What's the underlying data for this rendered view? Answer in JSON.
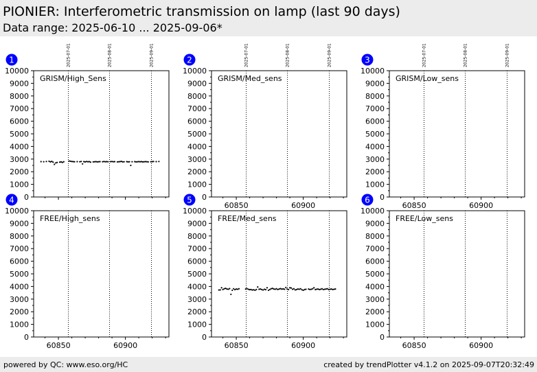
{
  "header": {
    "title": "PIONIER: Interferometric transmission on lamp (last 90 days)",
    "subtitle": "Data range: 2025-06-10 ... 2025-09-06*"
  },
  "footer": {
    "left": "powered by QC: www.eso.org/HC",
    "right": "created by trendPlotter v4.1.2 on 2025-09-07T20:32:49"
  },
  "colors": {
    "badge": "#0000ff",
    "points": "#000000",
    "header_bg": "#ececec"
  },
  "chart_data": [
    {
      "id": "1",
      "type": "scatter",
      "label": "GRISM/High_Sens",
      "xlim": [
        60831.5,
        60932.5
      ],
      "ylim": [
        0,
        10000
      ],
      "xticks": [
        60850,
        60900
      ],
      "show_xtick_labels": false,
      "yticks": [
        0,
        1000,
        2000,
        3000,
        4000,
        5000,
        6000,
        7000,
        8000,
        9000,
        10000
      ],
      "date_markers": [
        {
          "x": 60857,
          "label": "2025-07-01"
        },
        {
          "x": 60888,
          "label": "2025-08-01"
        },
        {
          "x": 60919,
          "label": "2025-09-01"
        }
      ],
      "points": [
        [
          60837,
          2800
        ],
        [
          60839,
          2790
        ],
        [
          60841,
          2810
        ],
        [
          60843,
          2830
        ],
        [
          60844,
          2780
        ],
        [
          60845,
          2820
        ],
        [
          60846,
          2760
        ],
        [
          60847,
          2580
        ],
        [
          60848,
          2700
        ],
        [
          60849,
          2730
        ],
        [
          60851,
          2760
        ],
        [
          60852,
          2780
        ],
        [
          60853,
          2740
        ],
        [
          60854,
          2790
        ],
        [
          60858,
          2850
        ],
        [
          60859,
          2830
        ],
        [
          60860,
          2810
        ],
        [
          60861,
          2800
        ],
        [
          60862,
          2790
        ],
        [
          60864,
          2800
        ],
        [
          60866,
          2790
        ],
        [
          60867,
          2810
        ],
        [
          60868,
          2620
        ],
        [
          60869,
          2800
        ],
        [
          60870,
          2780
        ],
        [
          60871,
          2810
        ],
        [
          60872,
          2790
        ],
        [
          60873,
          2800
        ],
        [
          60874,
          2760
        ],
        [
          60876,
          2780
        ],
        [
          60877,
          2790
        ],
        [
          60878,
          2800
        ],
        [
          60879,
          2780
        ],
        [
          60880,
          2790
        ],
        [
          60881,
          2800
        ],
        [
          60883,
          2790
        ],
        [
          60884,
          2810
        ],
        [
          60885,
          2790
        ],
        [
          60886,
          2800
        ],
        [
          60887,
          2790
        ],
        [
          60889,
          2800
        ],
        [
          60890,
          2810
        ],
        [
          60891,
          2790
        ],
        [
          60892,
          2800
        ],
        [
          60894,
          2780
        ],
        [
          60895,
          2790
        ],
        [
          60896,
          2800
        ],
        [
          60897,
          2820
        ],
        [
          60898,
          2780
        ],
        [
          60899,
          2790
        ],
        [
          60901,
          2800
        ],
        [
          60902,
          2780
        ],
        [
          60903,
          2790
        ],
        [
          60904,
          2500
        ],
        [
          60905,
          2790
        ],
        [
          60907,
          2800
        ],
        [
          60908,
          2780
        ],
        [
          60909,
          2790
        ],
        [
          60910,
          2800
        ],
        [
          60911,
          2790
        ],
        [
          60912,
          2800
        ],
        [
          60913,
          2780
        ],
        [
          60914,
          2790
        ],
        [
          60915,
          2800
        ],
        [
          60916,
          2790
        ],
        [
          60917,
          2780
        ],
        [
          60919,
          2790
        ],
        [
          60920,
          2800
        ],
        [
          60921,
          2810
        ],
        [
          60923,
          2800
        ],
        [
          60925,
          2810
        ]
      ]
    },
    {
      "id": "2",
      "type": "scatter",
      "label": "GRISM/Med_sens",
      "xlim": [
        60831.5,
        60932.5
      ],
      "ylim": [
        0,
        10000
      ],
      "xticks": [
        60850,
        60900
      ],
      "show_xtick_labels": true,
      "yticks": [
        0,
        1000,
        2000,
        3000,
        4000,
        5000,
        6000,
        7000,
        8000,
        9000,
        10000
      ],
      "date_markers": [
        {
          "x": 60857,
          "label": "2025-07-01"
        },
        {
          "x": 60888,
          "label": "2025-08-01"
        },
        {
          "x": 60919,
          "label": "2025-09-01"
        }
      ],
      "points": []
    },
    {
      "id": "3",
      "type": "scatter",
      "label": "GRISM/Low_sens",
      "xlim": [
        60831.5,
        60932.5
      ],
      "ylim": [
        0,
        10000
      ],
      "xticks": [
        60850,
        60900
      ],
      "show_xtick_labels": true,
      "yticks": [
        0,
        1000,
        2000,
        3000,
        4000,
        5000,
        6000,
        7000,
        8000,
        9000,
        10000
      ],
      "date_markers": [
        {
          "x": 60857,
          "label": "2025-07-01"
        },
        {
          "x": 60888,
          "label": "2025-08-01"
        },
        {
          "x": 60919,
          "label": "2025-09-01"
        }
      ],
      "points": []
    },
    {
      "id": "4",
      "type": "scatter",
      "label": "FREE/High_sens",
      "xlim": [
        60831.5,
        60932.5
      ],
      "ylim": [
        0,
        10000
      ],
      "xticks": [
        60850,
        60900
      ],
      "show_xtick_labels": true,
      "yticks": [
        0,
        1000,
        2000,
        3000,
        4000,
        5000,
        6000,
        7000,
        8000,
        9000,
        10000
      ],
      "date_markers": [
        {
          "x": 60857,
          "label": ""
        },
        {
          "x": 60888,
          "label": ""
        },
        {
          "x": 60919,
          "label": ""
        }
      ],
      "points": []
    },
    {
      "id": "5",
      "type": "scatter",
      "label": "FREE/Med_sens",
      "xlim": [
        60831.5,
        60932.5
      ],
      "ylim": [
        0,
        10000
      ],
      "xticks": [
        60850,
        60900
      ],
      "show_xtick_labels": true,
      "yticks": [
        0,
        1000,
        2000,
        3000,
        4000,
        5000,
        6000,
        7000,
        8000,
        9000,
        10000
      ],
      "date_markers": [
        {
          "x": 60857,
          "label": ""
        },
        {
          "x": 60888,
          "label": ""
        },
        {
          "x": 60919,
          "label": ""
        }
      ],
      "points": [
        [
          60837,
          3720
        ],
        [
          60838,
          3730
        ],
        [
          60839,
          3900
        ],
        [
          60840,
          3760
        ],
        [
          60841,
          3820
        ],
        [
          60842,
          3850
        ],
        [
          60843,
          3800
        ],
        [
          60844,
          3780
        ],
        [
          60845,
          3830
        ],
        [
          60846,
          3380
        ],
        [
          60847,
          3700
        ],
        [
          60848,
          3820
        ],
        [
          60849,
          3750
        ],
        [
          60850,
          3800
        ],
        [
          60851,
          3780
        ],
        [
          60852,
          3820
        ],
        [
          60857,
          3800
        ],
        [
          60858,
          3830
        ],
        [
          60859,
          3780
        ],
        [
          60860,
          3750
        ],
        [
          60861,
          3760
        ],
        [
          60862,
          3720
        ],
        [
          60863,
          3740
        ],
        [
          60864,
          3700
        ],
        [
          60865,
          3760
        ],
        [
          60866,
          3960
        ],
        [
          60867,
          3780
        ],
        [
          60868,
          3800
        ],
        [
          60869,
          3760
        ],
        [
          60870,
          3720
        ],
        [
          60871,
          3780
        ],
        [
          60872,
          3750
        ],
        [
          60873,
          3900
        ],
        [
          60874,
          3700
        ],
        [
          60875,
          3760
        ],
        [
          60876,
          3820
        ],
        [
          60877,
          3850
        ],
        [
          60878,
          3800
        ],
        [
          60879,
          3780
        ],
        [
          60880,
          3820
        ],
        [
          60881,
          3760
        ],
        [
          60882,
          3800
        ],
        [
          60883,
          3830
        ],
        [
          60884,
          3790
        ],
        [
          60885,
          3810
        ],
        [
          60886,
          3780
        ],
        [
          60887,
          3920
        ],
        [
          60888,
          3800
        ],
        [
          60889,
          3760
        ],
        [
          60890,
          3900
        ],
        [
          60891,
          3880
        ],
        [
          60892,
          3780
        ],
        [
          60893,
          3820
        ],
        [
          60894,
          3730
        ],
        [
          60895,
          3760
        ],
        [
          60896,
          3800
        ],
        [
          60897,
          3780
        ],
        [
          60898,
          3820
        ],
        [
          60899,
          3740
        ],
        [
          60900,
          3700
        ],
        [
          60901,
          3760
        ],
        [
          60902,
          3780
        ],
        [
          60904,
          3800
        ],
        [
          60905,
          3760
        ],
        [
          60906,
          3780
        ],
        [
          60907,
          3820
        ],
        [
          60908,
          3900
        ],
        [
          60909,
          3760
        ],
        [
          60910,
          3780
        ],
        [
          60911,
          3800
        ],
        [
          60912,
          3760
        ],
        [
          60913,
          3780
        ],
        [
          60914,
          3820
        ],
        [
          60915,
          3760
        ],
        [
          60916,
          3780
        ],
        [
          60917,
          3800
        ],
        [
          60918,
          3820
        ],
        [
          60919,
          3760
        ],
        [
          60920,
          3780
        ],
        [
          60921,
          3800
        ],
        [
          60922,
          3760
        ],
        [
          60923,
          3780
        ],
        [
          60924,
          3800
        ]
      ]
    },
    {
      "id": "6",
      "type": "scatter",
      "label": "FREE/Low_sens",
      "xlim": [
        60831.5,
        60932.5
      ],
      "ylim": [
        0,
        10000
      ],
      "xticks": [
        60850,
        60900
      ],
      "show_xtick_labels": true,
      "yticks": [
        0,
        1000,
        2000,
        3000,
        4000,
        5000,
        6000,
        7000,
        8000,
        9000,
        10000
      ],
      "date_markers": [
        {
          "x": 60857,
          "label": ""
        },
        {
          "x": 60888,
          "label": ""
        },
        {
          "x": 60919,
          "label": ""
        }
      ],
      "points": []
    }
  ]
}
